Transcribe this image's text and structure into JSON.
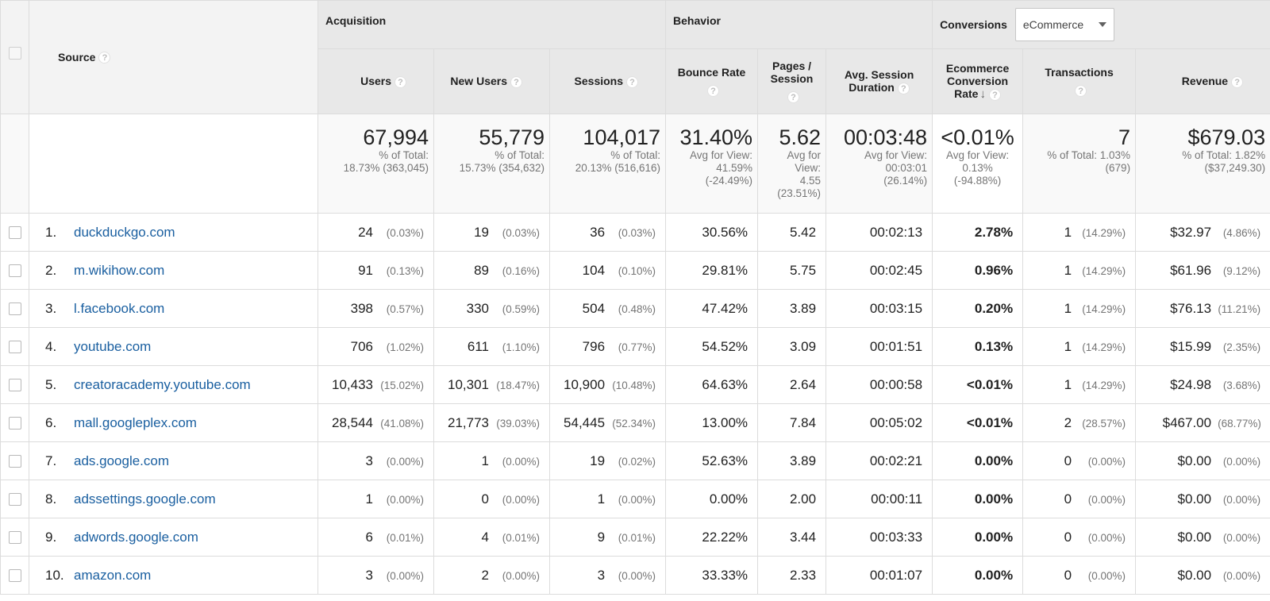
{
  "header": {
    "source_label": "Source",
    "groups": {
      "acquisition": "Acquisition",
      "behavior": "Behavior",
      "conversions": "Conversions"
    },
    "conversions_dropdown": "eCommerce",
    "columns": {
      "users": "Users",
      "new_users": "New Users",
      "sessions": "Sessions",
      "bounce_rate": "Bounce Rate",
      "pages_session": "Pages / Session",
      "avg_session_duration": "Avg. Session Duration",
      "ecommerce_conversion_rate": "Ecommerce Conversion Rate",
      "transactions": "Transactions",
      "revenue": "Revenue"
    }
  },
  "totals": {
    "users": {
      "value": "67,994",
      "sub1": "% of Total:",
      "sub2": "18.73% (363,045)"
    },
    "new_users": {
      "value": "55,779",
      "sub1": "% of Total:",
      "sub2": "15.73% (354,632)"
    },
    "sessions": {
      "value": "104,017",
      "sub1": "% of Total:",
      "sub2": "20.13% (516,616)"
    },
    "bounce_rate": {
      "value": "31.40%",
      "sub1": "Avg for View:",
      "sub2": "41.59%",
      "sub3": "(-24.49%)"
    },
    "pages_session": {
      "value": "5.62",
      "sub1": "Avg for",
      "sub2": "View:",
      "sub3": "4.55",
      "sub4": "(23.51%)"
    },
    "avg_session_duration": {
      "value": "00:03:48",
      "sub1": "Avg for View:",
      "sub2": "00:03:01",
      "sub3": "(26.14%)"
    },
    "ecommerce_conversion_rate": {
      "value": "<0.01%",
      "sub1": "Avg for View:",
      "sub2": "0.13%",
      "sub3": "(-94.88%)"
    },
    "transactions": {
      "value": "7",
      "sub1": "% of Total: 1.03%",
      "sub2": "(679)"
    },
    "revenue": {
      "value": "$679.03",
      "sub1": "% of Total: 1.82%",
      "sub2": "($37,249.30)"
    }
  },
  "rows": [
    {
      "idx": "1.",
      "source": "duckduckgo.com",
      "users": "24",
      "users_pct": "(0.03%)",
      "new_users": "19",
      "new_users_pct": "(0.03%)",
      "sessions": "36",
      "sessions_pct": "(0.03%)",
      "bounce": "30.56%",
      "pages": "5.42",
      "duration": "00:02:13",
      "conv": "2.78%",
      "trans": "1",
      "trans_pct": "(14.29%)",
      "revenue": "$32.97",
      "revenue_pct": "(4.86%)"
    },
    {
      "idx": "2.",
      "source": "m.wikihow.com",
      "users": "91",
      "users_pct": "(0.13%)",
      "new_users": "89",
      "new_users_pct": "(0.16%)",
      "sessions": "104",
      "sessions_pct": "(0.10%)",
      "bounce": "29.81%",
      "pages": "5.75",
      "duration": "00:02:45",
      "conv": "0.96%",
      "trans": "1",
      "trans_pct": "(14.29%)",
      "revenue": "$61.96",
      "revenue_pct": "(9.12%)"
    },
    {
      "idx": "3.",
      "source": "l.facebook.com",
      "users": "398",
      "users_pct": "(0.57%)",
      "new_users": "330",
      "new_users_pct": "(0.59%)",
      "sessions": "504",
      "sessions_pct": "(0.48%)",
      "bounce": "47.42%",
      "pages": "3.89",
      "duration": "00:03:15",
      "conv": "0.20%",
      "trans": "1",
      "trans_pct": "(14.29%)",
      "revenue": "$76.13",
      "revenue_pct": "(11.21%)"
    },
    {
      "idx": "4.",
      "source": "youtube.com",
      "users": "706",
      "users_pct": "(1.02%)",
      "new_users": "611",
      "new_users_pct": "(1.10%)",
      "sessions": "796",
      "sessions_pct": "(0.77%)",
      "bounce": "54.52%",
      "pages": "3.09",
      "duration": "00:01:51",
      "conv": "0.13%",
      "trans": "1",
      "trans_pct": "(14.29%)",
      "revenue": "$15.99",
      "revenue_pct": "(2.35%)"
    },
    {
      "idx": "5.",
      "source": "creatoracademy.youtube.com",
      "users": "10,433",
      "users_pct": "(15.02%)",
      "new_users": "10,301",
      "new_users_pct": "(18.47%)",
      "sessions": "10,900",
      "sessions_pct": "(10.48%)",
      "bounce": "64.63%",
      "pages": "2.64",
      "duration": "00:00:58",
      "conv": "<0.01%",
      "trans": "1",
      "trans_pct": "(14.29%)",
      "revenue": "$24.98",
      "revenue_pct": "(3.68%)"
    },
    {
      "idx": "6.",
      "source": "mall.googleplex.com",
      "users": "28,544",
      "users_pct": "(41.08%)",
      "new_users": "21,773",
      "new_users_pct": "(39.03%)",
      "sessions": "54,445",
      "sessions_pct": "(52.34%)",
      "bounce": "13.00%",
      "pages": "7.84",
      "duration": "00:05:02",
      "conv": "<0.01%",
      "trans": "2",
      "trans_pct": "(28.57%)",
      "revenue": "$467.00",
      "revenue_pct": "(68.77%)"
    },
    {
      "idx": "7.",
      "source": "ads.google.com",
      "users": "3",
      "users_pct": "(0.00%)",
      "new_users": "1",
      "new_users_pct": "(0.00%)",
      "sessions": "19",
      "sessions_pct": "(0.02%)",
      "bounce": "52.63%",
      "pages": "3.89",
      "duration": "00:02:21",
      "conv": "0.00%",
      "trans": "0",
      "trans_pct": "(0.00%)",
      "revenue": "$0.00",
      "revenue_pct": "(0.00%)"
    },
    {
      "idx": "8.",
      "source": "adssettings.google.com",
      "users": "1",
      "users_pct": "(0.00%)",
      "new_users": "0",
      "new_users_pct": "(0.00%)",
      "sessions": "1",
      "sessions_pct": "(0.00%)",
      "bounce": "0.00%",
      "pages": "2.00",
      "duration": "00:00:11",
      "conv": "0.00%",
      "trans": "0",
      "trans_pct": "(0.00%)",
      "revenue": "$0.00",
      "revenue_pct": "(0.00%)"
    },
    {
      "idx": "9.",
      "source": "adwords.google.com",
      "users": "6",
      "users_pct": "(0.01%)",
      "new_users": "4",
      "new_users_pct": "(0.01%)",
      "sessions": "9",
      "sessions_pct": "(0.01%)",
      "bounce": "22.22%",
      "pages": "3.44",
      "duration": "00:03:33",
      "conv": "0.00%",
      "trans": "0",
      "trans_pct": "(0.00%)",
      "revenue": "$0.00",
      "revenue_pct": "(0.00%)"
    },
    {
      "idx": "10.",
      "source": "amazon.com",
      "users": "3",
      "users_pct": "(0.00%)",
      "new_users": "2",
      "new_users_pct": "(0.00%)",
      "sessions": "3",
      "sessions_pct": "(0.00%)",
      "bounce": "33.33%",
      "pages": "2.33",
      "duration": "00:01:07",
      "conv": "0.00%",
      "trans": "0",
      "trans_pct": "(0.00%)",
      "revenue": "$0.00",
      "revenue_pct": "(0.00%)"
    }
  ],
  "colors": {
    "link": "#1a5fa0",
    "header_bg": "#e8e8e8",
    "muted_text": "#757575"
  },
  "icons": {
    "help": "help-circle-icon",
    "sort": "arrow-down-icon",
    "dropdown": "caret-down-icon"
  }
}
